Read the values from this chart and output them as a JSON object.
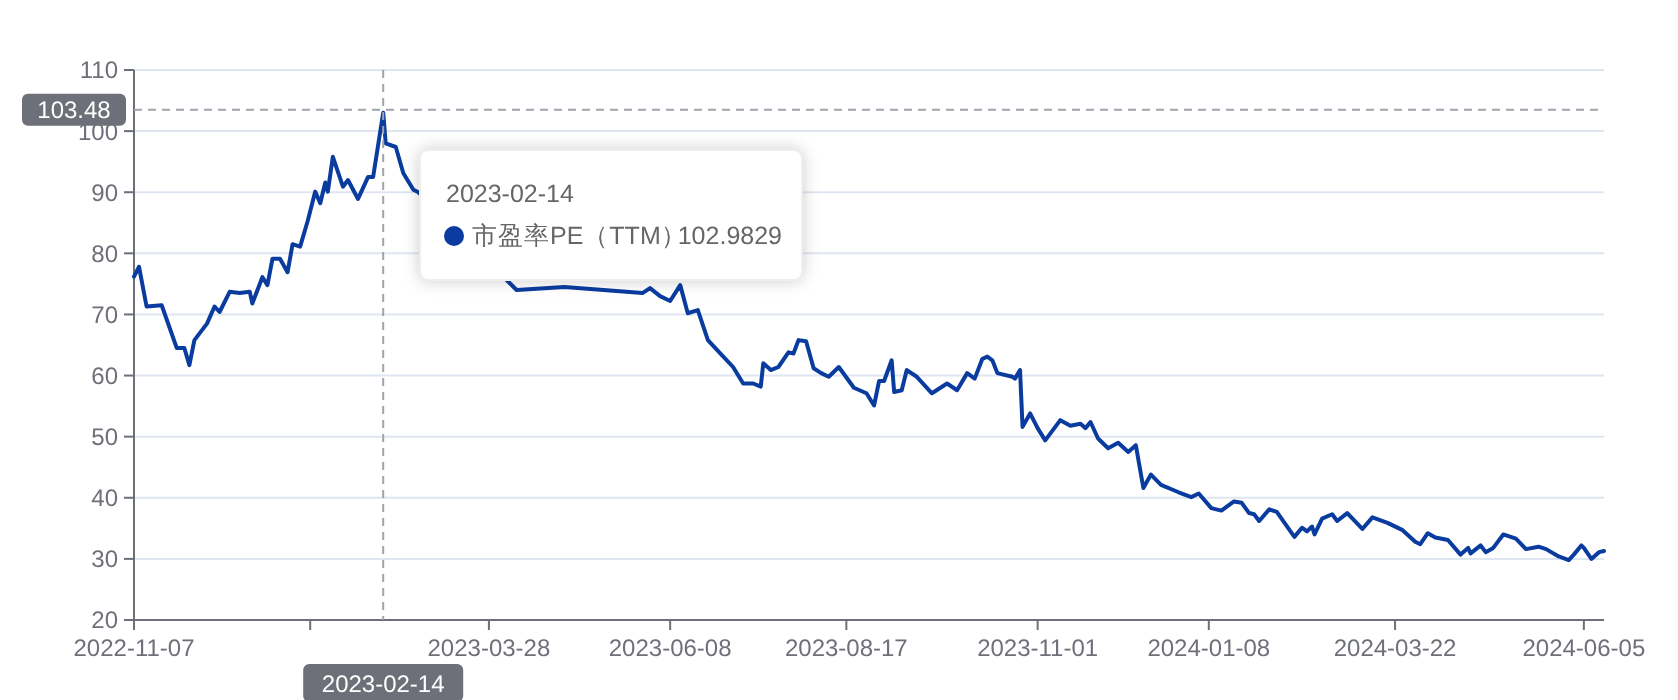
{
  "chart_data": {
    "type": "line",
    "x": [
      "2022-11-07",
      "2022-11-09",
      "2022-11-12",
      "2022-11-18",
      "2022-11-24",
      "2022-11-27",
      "2022-11-29",
      "2022-12-01",
      "2022-12-06",
      "2022-12-09",
      "2022-12-11",
      "2022-12-15",
      "2022-12-19",
      "2022-12-23",
      "2022-12-24",
      "2022-12-28",
      "2022-12-30",
      "2023-01-01",
      "2023-01-04",
      "2023-01-07",
      "2023-01-09",
      "2023-01-12",
      "2023-01-15",
      "2023-01-18",
      "2023-01-20",
      "2023-01-22",
      "2023-01-23",
      "2023-01-25",
      "2023-01-29",
      "2023-01-31",
      "2023-02-04",
      "2023-02-08",
      "2023-02-10",
      "2023-02-14",
      "2023-02-15",
      "2023-02-19",
      "2023-02-22",
      "2023-02-26",
      "2023-02-28",
      "2023-04-08",
      "2023-04-27",
      "2023-05-28",
      "2023-05-31",
      "2023-06-04",
      "2023-06-08",
      "2023-06-12",
      "2023-06-15",
      "2023-06-19",
      "2023-06-23",
      "2023-06-28",
      "2023-07-03",
      "2023-07-07",
      "2023-07-11",
      "2023-07-14",
      "2023-07-15",
      "2023-07-18",
      "2023-07-21",
      "2023-07-25",
      "2023-07-27",
      "2023-07-29",
      "2023-08-01",
      "2023-08-04",
      "2023-08-07",
      "2023-08-10",
      "2023-08-14",
      "2023-08-20",
      "2023-08-25",
      "2023-08-28",
      "2023-08-30",
      "2023-09-01",
      "2023-09-04",
      "2023-09-05",
      "2023-09-08",
      "2023-09-10",
      "2023-09-14",
      "2023-09-20",
      "2023-09-26",
      "2023-09-30",
      "2023-10-04",
      "2023-10-07",
      "2023-10-10",
      "2023-10-12",
      "2023-10-14",
      "2023-10-16",
      "2023-10-18",
      "2023-10-22",
      "2023-10-23",
      "2023-10-25",
      "2023-10-26",
      "2023-10-29",
      "2023-11-01",
      "2023-11-04",
      "2023-11-10",
      "2023-11-14",
      "2023-11-18",
      "2023-11-20",
      "2023-11-22",
      "2023-11-25",
      "2023-11-29",
      "2023-12-03",
      "2023-12-07",
      "2023-12-10",
      "2023-12-13",
      "2023-12-16",
      "2023-12-20",
      "2023-12-27",
      "2024-01-01",
      "2024-01-04",
      "2024-01-09",
      "2024-01-13",
      "2024-01-18",
      "2024-01-21",
      "2024-01-24",
      "2024-01-26",
      "2024-01-28",
      "2024-02-01",
      "2024-02-04",
      "2024-02-11",
      "2024-02-14",
      "2024-02-16",
      "2024-02-18",
      "2024-02-19",
      "2024-02-22",
      "2024-02-26",
      "2024-02-28",
      "2024-03-03",
      "2024-03-09",
      "2024-03-13",
      "2024-03-19",
      "2024-03-25",
      "2024-03-30",
      "2024-04-01",
      "2024-04-04",
      "2024-04-07",
      "2024-04-12",
      "2024-04-17",
      "2024-04-20",
      "2024-04-21",
      "2024-04-25",
      "2024-04-27",
      "2024-04-30",
      "2024-05-04",
      "2024-05-09",
      "2024-05-13",
      "2024-05-18",
      "2024-05-21",
      "2024-05-26",
      "2024-05-30",
      "2024-06-01",
      "2024-06-04",
      "2024-06-05",
      "2024-06-08",
      "2024-06-11",
      "2024-06-13"
    ],
    "series": [
      {
        "name": "市盈率PE（TTM）",
        "color": "#0a3ca0",
        "values": [
          76.2,
          77.8,
          71.3,
          71.5,
          64.5,
          64.5,
          61.7,
          65.8,
          68.5,
          71.3,
          70.4,
          73.7,
          73.5,
          73.7,
          71.8,
          76.1,
          74.8,
          79.1,
          79.1,
          76.9,
          81.5,
          81.1,
          85.3,
          90.1,
          88.2,
          91.6,
          90.1,
          95.8,
          90.9,
          92,
          88.9,
          92.5,
          92.5,
          103,
          98,
          97.4,
          93.1,
          90.4,
          90,
          74,
          74.5,
          73.5,
          74.3,
          73,
          72.2,
          74.8,
          70.2,
          70.7,
          65.8,
          63.6,
          61.4,
          58.7,
          58.7,
          58.2,
          62,
          60.9,
          61.4,
          63.8,
          63.6,
          65.8,
          65.6,
          61.2,
          60.4,
          59.8,
          61.4,
          58,
          57.1,
          55.1,
          59.1,
          59.1,
          62.5,
          57.3,
          57.6,
          60.9,
          59.8,
          57.1,
          58.7,
          57.6,
          60.4,
          59.5,
          62.7,
          63.1,
          62.5,
          60.4,
          60.2,
          59.8,
          59.5,
          60.9,
          51.6,
          53.8,
          51.4,
          49.4,
          52.7,
          51.8,
          52.1,
          51.4,
          52.4,
          49.7,
          48.1,
          49,
          47.5,
          48.6,
          41.6,
          43.8,
          42.1,
          40.9,
          40.1,
          40.7,
          38.3,
          37.9,
          39.4,
          39.2,
          37.5,
          37.3,
          36.2,
          38.1,
          37.7,
          33.6,
          35.1,
          34.5,
          35.3,
          34,
          36.6,
          37.3,
          36.2,
          37.5,
          34.9,
          36.8,
          35.9,
          34.7,
          32.8,
          32.4,
          34.2,
          33.5,
          33.1,
          30.7,
          31.8,
          30.9,
          32.2,
          31.1,
          31.8,
          34,
          33.3,
          31.6,
          32,
          31.6,
          30.4,
          29.8,
          30.7,
          32.2,
          31.8,
          30,
          31.1,
          31.3
        ]
      }
    ],
    "xlim": [
      "2022-11-07",
      "2024-06-13"
    ],
    "xticks": [
      {
        "value": "2022-11-07",
        "label": "2022-11-07"
      },
      {
        "value": "2023-01-16",
        "label": null
      },
      {
        "value": "2023-03-28",
        "label": "2023-03-28"
      },
      {
        "value": "2023-06-08",
        "label": "2023-06-08"
      },
      {
        "value": "2023-08-17",
        "label": "2023-08-17"
      },
      {
        "value": "2023-11-01",
        "label": "2023-11-01"
      },
      {
        "value": "2024-01-08",
        "label": "2024-01-08"
      },
      {
        "value": "2024-03-22",
        "label": "2024-03-22"
      },
      {
        "value": "2024-06-05",
        "label": "2024-06-05"
      }
    ],
    "ylim": [
      20,
      110
    ],
    "yticks": [
      20,
      30,
      40,
      50,
      60,
      70,
      80,
      90,
      100,
      110
    ],
    "grid": "y",
    "legend": "top left",
    "marker": "none",
    "line_style": "solid",
    "ref_lines": [
      {
        "axis": "y",
        "value": 103.48,
        "label": "103.48",
        "color": "#a0a3ad",
        "line_style": "dashed"
      },
      {
        "axis": "x",
        "value": "2023-02-14",
        "label": "2023-02-14",
        "color": "#a0a3ad",
        "line_style": "dashed"
      }
    ],
    "annotations": [
      "102.9829"
    ]
  }
}
